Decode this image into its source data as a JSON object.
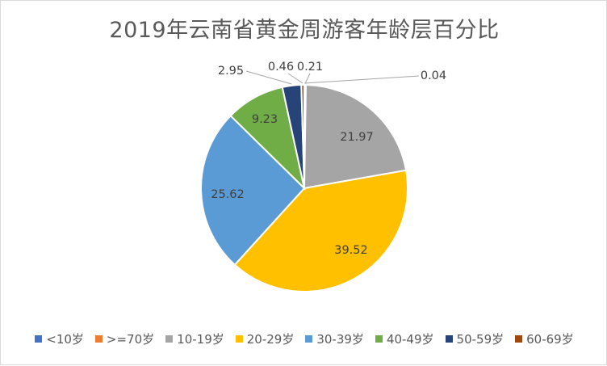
{
  "chart_data": {
    "type": "pie",
    "title": "2019年云南省黄金周游客年龄层百分比",
    "categories": [
      "<10岁",
      ">=70岁",
      "10-19岁",
      "20-29岁",
      "30-39岁",
      "40-49岁",
      "50-59岁",
      "60-69岁"
    ],
    "values": [
      0.04,
      0.21,
      21.97,
      39.52,
      25.62,
      9.23,
      2.95,
      0.46
    ],
    "value_labels": [
      "0.04",
      "0.21",
      "21.97",
      "39.52",
      "25.62",
      "9.23",
      "2.95",
      "0.46"
    ],
    "colors": [
      "#4472c4",
      "#ed7d31",
      "#a5a5a5",
      "#ffc000",
      "#5b9bd5",
      "#70ad47",
      "#264478",
      "#9e480e"
    ],
    "legend_position": "bottom",
    "legend": [
      "<10岁",
      ">=70岁",
      "10-19岁",
      "20-29岁",
      "30-39岁",
      "40-49岁",
      "50-59岁",
      "60-69岁"
    ]
  }
}
